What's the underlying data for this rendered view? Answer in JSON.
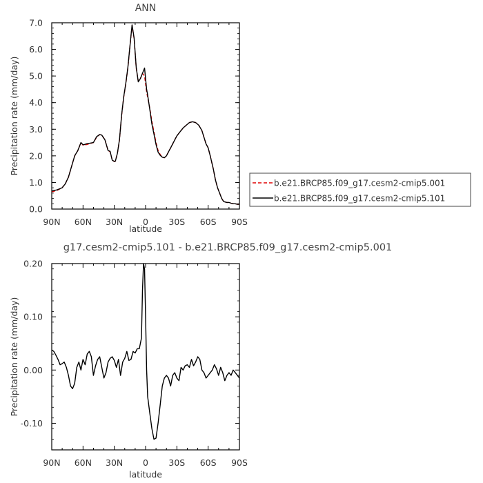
{
  "chart_data": [
    {
      "type": "line",
      "title": "ANN",
      "xlabel": "latitude",
      "ylabel": "Precipitation rate (mm/day)",
      "xlim": [
        90,
        -90
      ],
      "ylim": [
        0.0,
        7.0
      ],
      "x_ticks": [
        90,
        60,
        30,
        0,
        -30,
        -60,
        -90
      ],
      "x_tick_labels": [
        "90N",
        "60N",
        "30N",
        "0",
        "30S",
        "60S",
        "90S"
      ],
      "y_ticks": [
        0,
        1,
        2,
        3,
        4,
        5,
        6,
        7
      ],
      "y_tick_labels": [
        "0.0",
        "1.0",
        "2.0",
        "3.0",
        "4.0",
        "5.0",
        "6.0",
        "7.0"
      ],
      "legend_position": "right",
      "series": [
        {
          "name": "b.e21.BRCP85.f09_g17.cesm2-cmip5.001",
          "color": "#e00000",
          "dash": "dashed",
          "x": [
            90,
            85,
            80,
            77,
            74,
            71,
            68,
            65,
            62,
            60,
            59,
            57,
            54,
            50,
            47,
            44,
            42,
            39,
            36,
            34,
            32,
            30,
            29,
            27,
            25,
            23,
            21,
            19,
            17,
            15,
            13,
            11,
            9,
            7,
            5,
            3,
            1,
            -1,
            -2,
            -4,
            -6,
            -8,
            -10,
            -12,
            -14,
            -16,
            -18,
            -20,
            -22,
            -24,
            -26,
            -28,
            -30,
            -33,
            -36,
            -39,
            -42,
            -45,
            -48,
            -51,
            -54,
            -56,
            -58,
            -60,
            -62,
            -65,
            -67,
            -69,
            -71,
            -73,
            -75,
            -78,
            -80,
            -82,
            -84,
            -86,
            -88,
            -90
          ],
          "values": [
            0.65,
            0.7,
            0.8,
            0.95,
            1.2,
            1.6,
            2.0,
            2.2,
            2.5,
            2.4,
            2.4,
            2.42,
            2.45,
            2.5,
            2.7,
            2.8,
            2.78,
            2.6,
            2.2,
            2.15,
            1.85,
            1.78,
            1.8,
            2.1,
            2.6,
            3.5,
            4.2,
            4.7,
            5.3,
            6.1,
            6.9,
            6.4,
            5.3,
            4.8,
            4.9,
            5.1,
            5.0,
            4.4,
            4.2,
            3.8,
            3.3,
            2.9,
            2.5,
            2.2,
            2.05,
            1.95,
            1.93,
            2.0,
            2.15,
            2.3,
            2.45,
            2.6,
            2.75,
            2.9,
            3.05,
            3.15,
            3.25,
            3.28,
            3.25,
            3.15,
            2.95,
            2.7,
            2.45,
            2.3,
            2.0,
            1.5,
            1.1,
            0.8,
            0.6,
            0.4,
            0.28,
            0.25,
            0.25,
            0.22,
            0.2,
            0.2,
            0.18,
            0.18
          ]
        },
        {
          "name": "b.e21.BRCP85.f09_g17.cesm2-cmip5.101",
          "color": "#000000",
          "dash": "solid",
          "x": [
            90,
            85,
            80,
            77,
            74,
            71,
            68,
            65,
            62,
            60,
            59,
            57,
            54,
            50,
            47,
            44,
            42,
            39,
            36,
            34,
            32,
            30,
            29,
            27,
            25,
            23,
            21,
            19,
            17,
            15,
            13,
            11,
            9,
            7,
            5,
            3,
            1,
            -1,
            -2,
            -4,
            -6,
            -8,
            -10,
            -12,
            -14,
            -16,
            -18,
            -20,
            -22,
            -24,
            -26,
            -28,
            -30,
            -33,
            -36,
            -39,
            -42,
            -45,
            -48,
            -51,
            -54,
            -56,
            -58,
            -60,
            -62,
            -65,
            -67,
            -69,
            -71,
            -73,
            -75,
            -78,
            -80,
            -82,
            -84,
            -86,
            -88,
            -90
          ],
          "values": [
            0.68,
            0.72,
            0.8,
            0.95,
            1.2,
            1.6,
            2.0,
            2.2,
            2.5,
            2.42,
            2.42,
            2.45,
            2.47,
            2.5,
            2.72,
            2.8,
            2.78,
            2.6,
            2.2,
            2.17,
            1.84,
            1.79,
            1.8,
            2.1,
            2.62,
            3.52,
            4.22,
            4.72,
            5.32,
            6.12,
            6.92,
            6.42,
            5.33,
            4.78,
            4.9,
            5.1,
            5.3,
            4.5,
            4.28,
            3.76,
            3.2,
            2.82,
            2.43,
            2.14,
            2.02,
            1.95,
            1.93,
            2.0,
            2.15,
            2.3,
            2.45,
            2.6,
            2.75,
            2.9,
            3.05,
            3.15,
            3.25,
            3.28,
            3.25,
            3.15,
            2.95,
            2.7,
            2.45,
            2.3,
            2.0,
            1.5,
            1.1,
            0.8,
            0.6,
            0.4,
            0.28,
            0.25,
            0.25,
            0.22,
            0.2,
            0.2,
            0.18,
            0.18
          ]
        }
      ]
    },
    {
      "type": "line",
      "title": "g17.cesm2-cmip5.101 - b.e21.BRCP85.f09_g17.cesm2-cmip5.001",
      "xlabel": "latitude",
      "ylabel": "Precipitation rate (mm/day)",
      "xlim": [
        90,
        -90
      ],
      "ylim": [
        -0.15,
        0.2
      ],
      "x_ticks": [
        90,
        60,
        30,
        0,
        -30,
        -60,
        -90
      ],
      "x_tick_labels": [
        "90N",
        "60N",
        "30N",
        "0",
        "30S",
        "60S",
        "90S"
      ],
      "y_ticks": [
        0.2,
        0.1,
        0.0,
        -0.1
      ],
      "y_tick_labels": [
        "0.20",
        "0.10",
        "0.00",
        "-0.10"
      ],
      "series": [
        {
          "color": "#000000",
          "dash": "solid",
          "x": [
            90,
            88,
            86,
            84,
            82,
            80,
            78,
            76,
            74,
            72,
            70,
            68,
            66,
            64,
            62,
            60,
            58,
            56,
            54,
            52,
            50,
            48,
            46,
            44,
            42,
            40,
            38,
            36,
            34,
            32,
            30,
            28,
            26,
            24,
            22,
            20,
            18,
            16,
            14,
            12,
            10,
            8,
            6,
            4,
            3,
            2,
            1,
            0,
            -1,
            -2,
            -4,
            -6,
            -8,
            -10,
            -12,
            -14,
            -16,
            -18,
            -20,
            -22,
            -24,
            -26,
            -28,
            -30,
            -32,
            -34,
            -36,
            -38,
            -40,
            -42,
            -44,
            -46,
            -48,
            -50,
            -52,
            -54,
            -56,
            -58,
            -60,
            -62,
            -64,
            -66,
            -68,
            -70,
            -72,
            -74,
            -76,
            -78,
            -80,
            -82,
            -84,
            -86,
            -88,
            -90
          ],
          "values": [
            0.038,
            0.035,
            0.028,
            0.02,
            0.01,
            0.012,
            0.015,
            0.005,
            -0.01,
            -0.03,
            -0.035,
            -0.025,
            0.005,
            0.015,
            0.0,
            0.02,
            0.01,
            0.03,
            0.035,
            0.025,
            -0.01,
            0.008,
            0.02,
            0.025,
            0.005,
            -0.015,
            -0.005,
            0.015,
            0.022,
            0.025,
            0.018,
            0.005,
            0.02,
            -0.01,
            0.015,
            0.022,
            0.035,
            0.018,
            0.02,
            0.035,
            0.032,
            0.04,
            0.04,
            0.06,
            0.15,
            0.2,
            0.19,
            0.1,
            0.0,
            -0.05,
            -0.08,
            -0.11,
            -0.13,
            -0.128,
            -0.1,
            -0.065,
            -0.03,
            -0.015,
            -0.01,
            -0.015,
            -0.03,
            -0.01,
            -0.005,
            -0.015,
            -0.02,
            0.005,
            0.0,
            0.008,
            0.01,
            0.005,
            0.02,
            0.008,
            0.015,
            0.025,
            0.02,
            0.0,
            -0.005,
            -0.015,
            -0.01,
            -0.005,
            0.0,
            0.01,
            0.002,
            -0.01,
            0.005,
            -0.005,
            -0.02,
            -0.01,
            -0.005,
            -0.01,
            0.0,
            -0.005,
            -0.01,
            -0.015
          ]
        }
      ]
    }
  ]
}
